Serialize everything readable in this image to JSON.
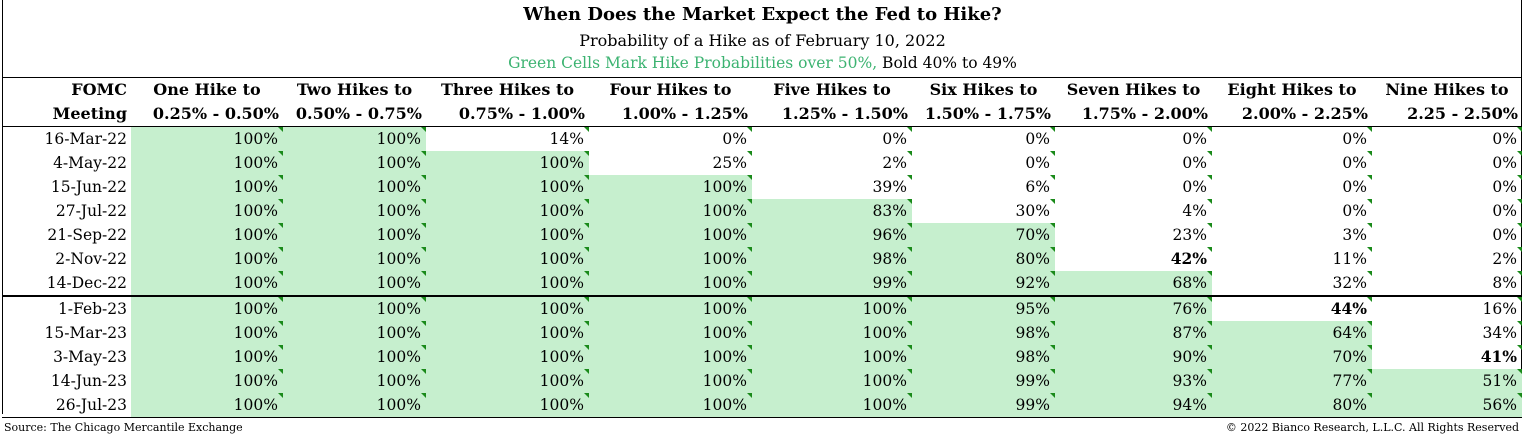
{
  "chart_data": {
    "type": "table",
    "title": "When Does the Market Expect the Fed to Hike?",
    "subtitle": "Probability of a Hike as of February 10, 2022",
    "note_green": "Green Cells Mark Hike Probabilities over 50%,",
    "note_bold": " Bold 40% to 49%",
    "header_row1": [
      "FOMC",
      "One Hike to",
      "Two Hikes to",
      "Three Hikes to",
      "Four Hikes to",
      "Five Hikes to",
      "Six Hikes to",
      "Seven Hikes to",
      "Eight Hikes to",
      "Nine Hikes to"
    ],
    "header_row2": [
      "Meeting",
      "0.25% - 0.50%",
      "0.50% - 0.75%",
      "0.75% - 1.00%",
      "1.00% - 1.25%",
      "1.25% - 1.50%",
      "1.50% - 1.75%",
      "1.75% - 2.00%",
      "2.00% - 2.25%",
      "2.25 - 2.50%"
    ],
    "rows": [
      {
        "meeting": "16-Mar-22",
        "values": [
          100,
          100,
          14,
          0,
          0,
          0,
          0,
          0,
          0
        ]
      },
      {
        "meeting": "4-May-22",
        "values": [
          100,
          100,
          100,
          25,
          2,
          0,
          0,
          0,
          0
        ]
      },
      {
        "meeting": "15-Jun-22",
        "values": [
          100,
          100,
          100,
          100,
          39,
          6,
          0,
          0,
          0
        ]
      },
      {
        "meeting": "27-Jul-22",
        "values": [
          100,
          100,
          100,
          100,
          83,
          30,
          4,
          0,
          0
        ]
      },
      {
        "meeting": "21-Sep-22",
        "values": [
          100,
          100,
          100,
          100,
          96,
          70,
          23,
          3,
          0
        ]
      },
      {
        "meeting": "2-Nov-22",
        "values": [
          100,
          100,
          100,
          100,
          98,
          80,
          42,
          11,
          2
        ]
      },
      {
        "meeting": "14-Dec-22",
        "values": [
          100,
          100,
          100,
          100,
          99,
          92,
          68,
          32,
          8
        ]
      },
      {
        "meeting": "1-Feb-23",
        "values": [
          100,
          100,
          100,
          100,
          100,
          95,
          76,
          44,
          16
        ]
      },
      {
        "meeting": "15-Mar-23",
        "values": [
          100,
          100,
          100,
          100,
          100,
          98,
          87,
          64,
          34
        ]
      },
      {
        "meeting": "3-May-23",
        "values": [
          100,
          100,
          100,
          100,
          100,
          98,
          90,
          70,
          41
        ]
      },
      {
        "meeting": "14-Jun-23",
        "values": [
          100,
          100,
          100,
          100,
          100,
          99,
          93,
          77,
          51
        ]
      },
      {
        "meeting": "26-Jul-23",
        "values": [
          100,
          100,
          100,
          100,
          100,
          99,
          94,
          80,
          56
        ]
      }
    ],
    "unit": "%",
    "green_threshold": 50,
    "bold_range": [
      40,
      49
    ],
    "green_color": "#c6efce",
    "separator_before_row": 7
  },
  "source": "Source: The Chicago Mercantile Exchange",
  "copyright": "© 2022 Bianco Research, L.L.C. All Rights Reserved"
}
